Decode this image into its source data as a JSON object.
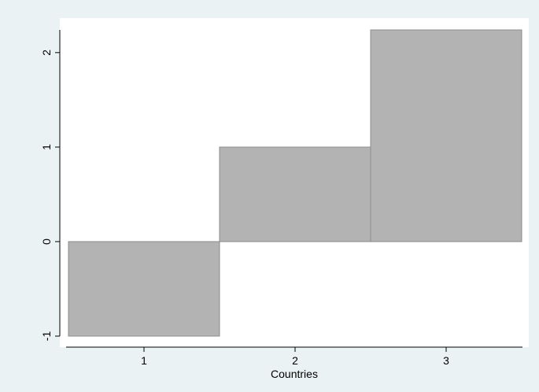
{
  "chart_data": {
    "type": "bar",
    "categories": [
      "1",
      "2",
      "3"
    ],
    "values": [
      -1.0,
      1.0,
      2.24
    ],
    "title": "",
    "xlabel": "Countries",
    "ylabel": "",
    "x_ticks": [
      "1",
      "2",
      "3"
    ],
    "y_ticks": [
      -1,
      0,
      1,
      2
    ],
    "y_tick_labels": [
      "-1",
      "0",
      "1",
      "2"
    ],
    "ylim": [
      -1.0,
      2.24
    ],
    "grid": false,
    "legend": "none",
    "colors": {
      "outer_background": "#eaf2f3",
      "plot_background": "#ffffff",
      "bar_fill": "#b3b3b3",
      "bar_stroke": "#8c8c8c",
      "axis": "#000000"
    }
  }
}
